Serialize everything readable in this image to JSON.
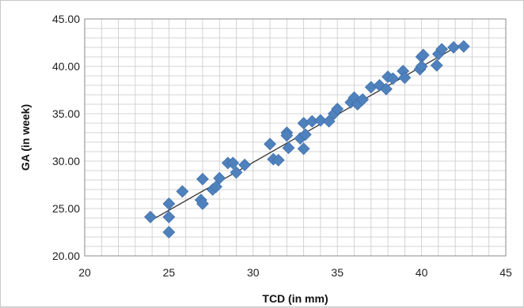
{
  "chart_data": {
    "type": "scatter",
    "xlabel": "TCD (in mm)",
    "ylabel": "GA (in week)",
    "xlim": [
      20,
      45
    ],
    "ylim": [
      20,
      45
    ],
    "x_ticks": [
      "20",
      "25",
      "30",
      "35",
      "40",
      "45"
    ],
    "y_ticks": [
      "20.00",
      "25.00",
      "30.00",
      "35.00",
      "40.00",
      "45.00"
    ],
    "grid": true,
    "marker": "diamond",
    "marker_color": "#4f81bd",
    "trendline": {
      "x": [
        23.9,
        42.6
      ],
      "y": [
        23.7,
        42.6
      ],
      "color": "#333333"
    },
    "series": [
      {
        "x": [
          23.9,
          25,
          25,
          25,
          25.8,
          26.9,
          27,
          27,
          27.6,
          27.8,
          28,
          28.5,
          28.8,
          29,
          29.5,
          31,
          31.2,
          31.5,
          32,
          32,
          32.1,
          32.8,
          33,
          33,
          33.1,
          33.5,
          34,
          34.5,
          34.8,
          35,
          35.8,
          36,
          36.2,
          36.5,
          37,
          37.5,
          37.9,
          38,
          38.3,
          38.9,
          39,
          39.9,
          40,
          40,
          40.1,
          40.9,
          41,
          41.2,
          41.9,
          42.5
        ],
        "y": [
          24.1,
          25.5,
          24.1,
          22.5,
          26.8,
          25.9,
          25.5,
          28.1,
          27,
          27.3,
          28.2,
          29.8,
          29.8,
          28.8,
          29.6,
          31.8,
          30.2,
          30.1,
          33,
          32.7,
          31.4,
          32.4,
          34,
          31.3,
          32.8,
          34.2,
          34.3,
          34.2,
          35,
          35.5,
          36.2,
          36.7,
          36,
          36.5,
          37.8,
          38,
          37.6,
          38.9,
          38.7,
          39.5,
          38.8,
          39.7,
          41,
          40,
          41.2,
          40.1,
          41.3,
          41.8,
          42,
          42.1
        ]
      }
    ]
  }
}
